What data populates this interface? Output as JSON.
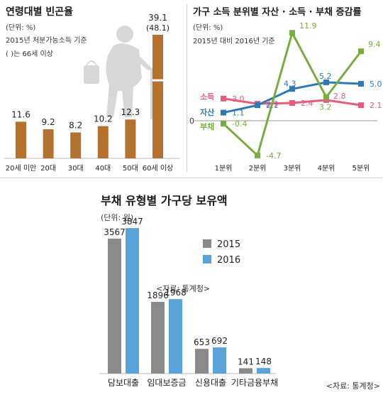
{
  "colors": {
    "poverty_bar": "#b5722f",
    "silhouette": "#d7d7d7",
    "income": "#e95b7a",
    "assets": "#2f78b6",
    "debt": "#77ad3f",
    "bar_2015": "#8a8a8a",
    "bar_2016": "#5aa3da"
  },
  "chart_data": [
    {
      "type": "bar",
      "title": "연령대별 빈곤율",
      "unit": "(단위: %)",
      "notes": [
        "2015년 처분가능소득 기준",
        "( )는 66세 이상"
      ],
      "categories": [
        "20세 미만",
        "20대",
        "30대",
        "40대",
        "50대",
        "60세 이상"
      ],
      "values": [
        11.6,
        9.2,
        8.2,
        10.2,
        12.3,
        39.1
      ],
      "value_labels": [
        "11.6",
        "9.2",
        "8.2",
        "10.2",
        "12.3",
        "39.1"
      ],
      "extra_label": "(48.1)",
      "ylim": [
        0,
        42
      ],
      "legend": "none",
      "grid": false
    },
    {
      "type": "line",
      "title": "가구 소득 분위별 자산 · 소득 · 부채 증감률",
      "unit": "(단위: %)",
      "notes": [
        "2015년 대비 2016년 기준"
      ],
      "categories": [
        "1분위",
        "2분위",
        "3분위",
        "4분위",
        "5분위"
      ],
      "zero_label": "0",
      "series": [
        {
          "name": "소득",
          "values": [
            3.0,
            2.3,
            2.4,
            2.8,
            2.1
          ],
          "labels": [
            "3.0",
            "2.3",
            "2.4",
            "2.8",
            "2.1"
          ]
        },
        {
          "name": "자산",
          "values": [
            1.1,
            2.1,
            4.3,
            5.2,
            5.0
          ],
          "labels": [
            "1.1",
            "2.1",
            "4.3",
            "5.2",
            "5.0"
          ]
        },
        {
          "name": "부채",
          "values": [
            -0.4,
            -4.7,
            11.9,
            3.2,
            9.4
          ],
          "labels": [
            "-0.4",
            "-4.7",
            "11.9",
            "3.2",
            "9.4"
          ]
        }
      ],
      "ylim": [
        -6,
        13
      ],
      "legend": "left, next to first points",
      "grid": false
    },
    {
      "type": "bar",
      "title": "부채 유형별 가구당 보유액",
      "unit": "(단위: 원)",
      "note": "<자료: 통계청>",
      "categories": [
        "담보대출",
        "임대보증금",
        "신용대출",
        "기타금융부채"
      ],
      "series": [
        {
          "name": "2015",
          "values": [
            3567,
            1896,
            653,
            141
          ]
        },
        {
          "name": "2016",
          "values": [
            3847,
            1968,
            692,
            148
          ]
        }
      ],
      "ylim": [
        0,
        4000
      ],
      "legend": "top-right",
      "grid": false
    }
  ],
  "footer_source": "<자료: 통계청>"
}
